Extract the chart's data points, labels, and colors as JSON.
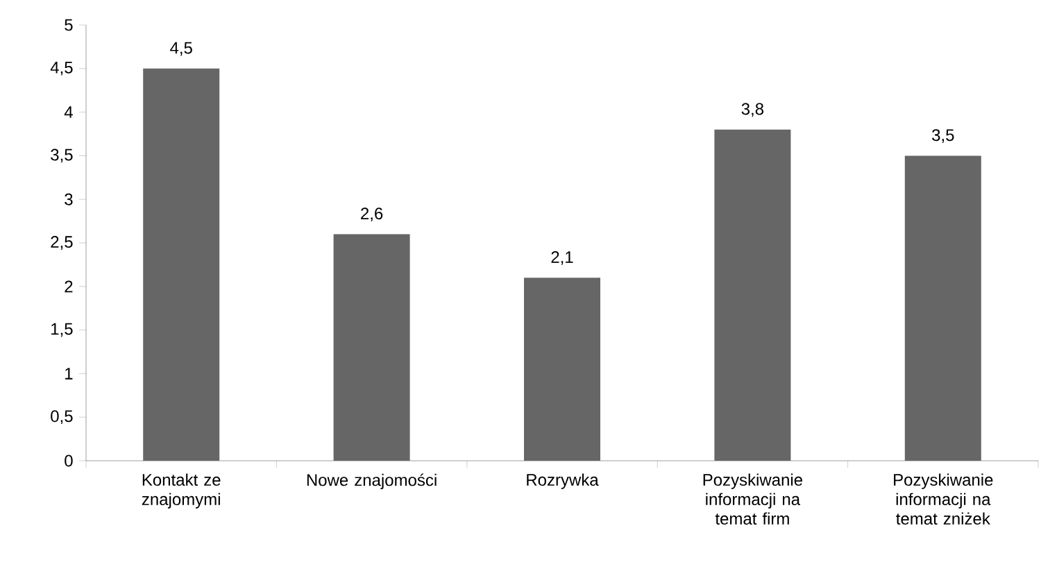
{
  "chart_data": {
    "type": "bar",
    "categories": [
      "Kontakt ze znajomymi",
      "Nowe znajomości",
      "Rozrywka",
      "Pozyskiwanie informacji na temat firm",
      "Pozyskiwanie informacji na temat zniżek"
    ],
    "values": [
      4.5,
      2.6,
      2.1,
      3.8,
      3.5
    ],
    "value_labels": [
      "4,5",
      "2,6",
      "2,1",
      "3,8",
      "3,5"
    ],
    "color": "#666666",
    "ylim": [
      0,
      5
    ],
    "yticks": [
      0,
      {
        "value": 0.5,
        "label": "0,5"
      },
      1,
      {
        "value": 1.5,
        "label": "1,5"
      },
      2,
      {
        "value": 2.5,
        "label": "2,5"
      },
      3,
      {
        "value": 3.5,
        "label": "3,5"
      },
      4,
      {
        "value": 4.5,
        "label": "4,5"
      },
      5
    ]
  }
}
